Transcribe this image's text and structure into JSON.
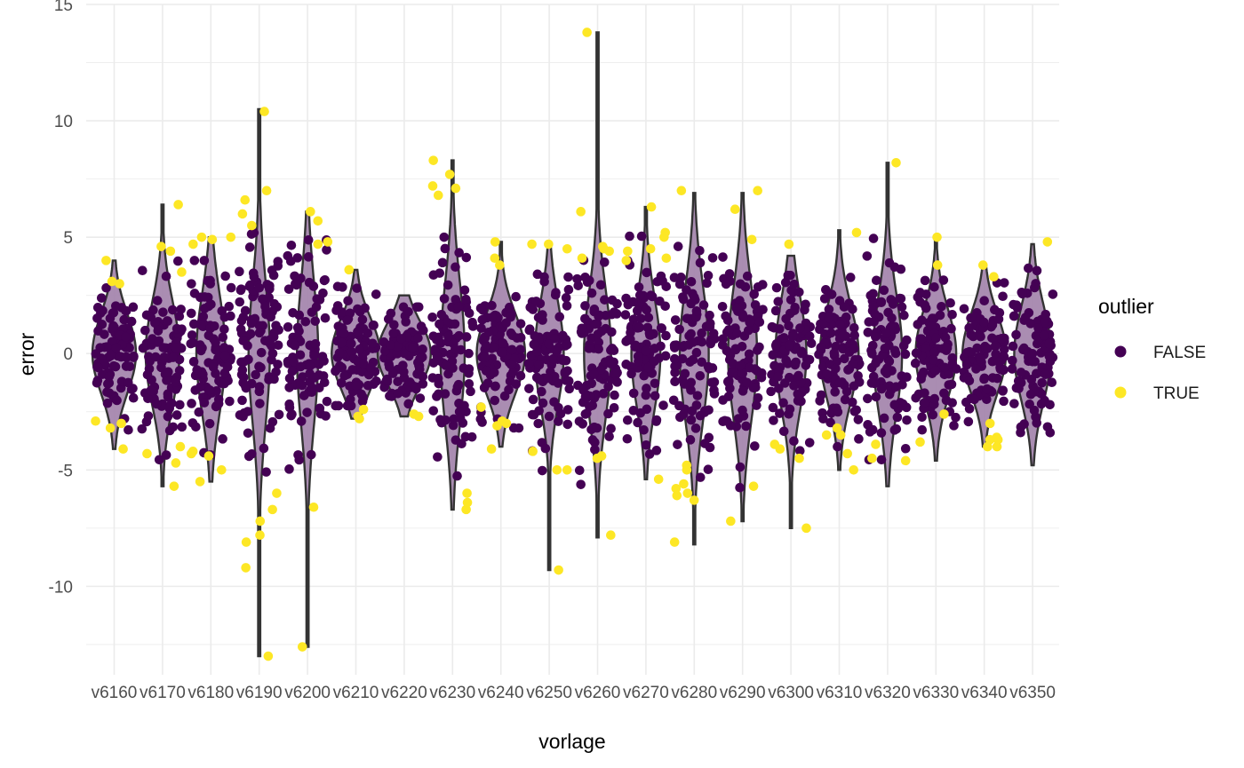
{
  "chart_data": {
    "type": "violin-with-jitter",
    "xlabel": "vorlage",
    "ylabel": "error",
    "categories": [
      "v6160",
      "v6170",
      "v6180",
      "v6190",
      "v6200",
      "v6210",
      "v6220",
      "v6230",
      "v6240",
      "v6250",
      "v6260",
      "v6270",
      "v6280",
      "v6290",
      "v6300",
      "v6310",
      "v6320",
      "v6330",
      "v6340",
      "v6350"
    ],
    "ylim": [
      -13.8,
      15
    ],
    "yticks": [
      15,
      10,
      5,
      0,
      -5,
      -10
    ],
    "grid": true,
    "legend": {
      "title": "outlier",
      "position": "right",
      "entries": [
        {
          "label": "FALSE",
          "color": "#440154"
        },
        {
          "label": "TRUE",
          "color": "#FDE725"
        }
      ]
    },
    "violin_fill": "#A383AB",
    "violin_stroke": "#333333",
    "violins": [
      {
        "category": "v6160",
        "min": -4.1,
        "max": 4.0,
        "q1": -1.0,
        "median": 0.0,
        "q3": 1.0,
        "max_width": 0.45
      },
      {
        "category": "v6170",
        "min": -5.7,
        "max": 6.4,
        "q1": -1.3,
        "median": 0.0,
        "q3": 1.3,
        "max_width": 0.35
      },
      {
        "category": "v6180",
        "min": -5.5,
        "max": 5.0,
        "q1": -1.5,
        "median": 0.0,
        "q3": 1.5,
        "max_width": 0.3
      },
      {
        "category": "v6190",
        "min": -13.0,
        "max": 10.5,
        "q1": -1.8,
        "median": 0.0,
        "q3": 1.8,
        "max_width": 0.22
      },
      {
        "category": "v6200",
        "min": -12.6,
        "max": 6.1,
        "q1": -1.8,
        "median": 0.0,
        "q3": 1.8,
        "max_width": 0.22
      },
      {
        "category": "v6210",
        "min": -2.8,
        "max": 3.6,
        "q1": -0.9,
        "median": 0.0,
        "q3": 0.9,
        "max_width": 0.5
      },
      {
        "category": "v6220",
        "min": -2.7,
        "max": 2.5,
        "q1": -0.8,
        "median": 0.0,
        "q3": 0.8,
        "max_width": 0.55
      },
      {
        "category": "v6230",
        "min": -6.7,
        "max": 8.3,
        "q1": -1.8,
        "median": 0.0,
        "q3": 1.8,
        "max_width": 0.25
      },
      {
        "category": "v6240",
        "min": -4.0,
        "max": 4.8,
        "q1": -1.0,
        "median": 0.0,
        "q3": 1.0,
        "max_width": 0.5
      },
      {
        "category": "v6250",
        "min": -9.3,
        "max": 4.7,
        "q1": -1.3,
        "median": 0.0,
        "q3": 1.3,
        "max_width": 0.3
      },
      {
        "category": "v6260",
        "min": -7.9,
        "max": 13.8,
        "q1": -1.6,
        "median": 0.0,
        "q3": 1.6,
        "max_width": 0.28
      },
      {
        "category": "v6270",
        "min": -5.4,
        "max": 6.3,
        "q1": -1.4,
        "median": 0.0,
        "q3": 1.4,
        "max_width": 0.3
      },
      {
        "category": "v6280",
        "min": -8.2,
        "max": 6.9,
        "q1": -1.7,
        "median": 0.0,
        "q3": 1.7,
        "max_width": 0.3
      },
      {
        "category": "v6290",
        "min": -7.2,
        "max": 6.9,
        "q1": -1.7,
        "median": 0.0,
        "q3": 1.7,
        "max_width": 0.3
      },
      {
        "category": "v6300",
        "min": -7.5,
        "max": 4.2,
        "q1": -1.4,
        "median": 0.0,
        "q3": 1.4,
        "max_width": 0.32
      },
      {
        "category": "v6310",
        "min": -5.0,
        "max": 5.3,
        "q1": -1.2,
        "median": 0.0,
        "q3": 1.2,
        "max_width": 0.4
      },
      {
        "category": "v6320",
        "min": -5.7,
        "max": 8.2,
        "q1": -1.5,
        "median": 0.0,
        "q3": 1.5,
        "max_width": 0.3
      },
      {
        "category": "v6330",
        "min": -4.6,
        "max": 5.0,
        "q1": -1.1,
        "median": 0.0,
        "q3": 1.1,
        "max_width": 0.42
      },
      {
        "category": "v6340",
        "min": -4.0,
        "max": 3.8,
        "q1": -1.0,
        "median": 0.0,
        "q3": 1.0,
        "max_width": 0.45
      },
      {
        "category": "v6350",
        "min": -4.8,
        "max": 4.7,
        "q1": -1.2,
        "median": 0.0,
        "q3": 1.2,
        "max_width": 0.38
      }
    ],
    "outliers": [
      {
        "category": "v6160",
        "values": [
          -4.1,
          -3.2,
          -3.0,
          -2.9,
          3.0,
          3.1,
          4.0
        ]
      },
      {
        "category": "v6170",
        "values": [
          -5.7,
          -4.7,
          -4.3,
          -4.0,
          3.5,
          4.4,
          4.6,
          6.4
        ]
      },
      {
        "category": "v6180",
        "values": [
          -5.5,
          -5.0,
          -4.4,
          -4.2,
          -4.3,
          4.7,
          4.9,
          5.0,
          5.0
        ]
      },
      {
        "category": "v6190",
        "values": [
          -13.0,
          -9.2,
          -8.1,
          -7.8,
          -7.2,
          -6.7,
          -6.0,
          5.5,
          6.0,
          6.6,
          7.0,
          10.4
        ]
      },
      {
        "category": "v6200",
        "values": [
          -12.6,
          -6.6,
          4.7,
          4.8,
          5.7,
          6.1
        ]
      },
      {
        "category": "v6210",
        "values": [
          -2.8,
          -2.7,
          -2.4,
          3.6
        ]
      },
      {
        "category": "v6220",
        "values": [
          -2.7,
          -2.6
        ]
      },
      {
        "category": "v6230",
        "values": [
          -6.7,
          -6.4,
          -6.0,
          6.8,
          7.1,
          7.2,
          7.7,
          8.3
        ]
      },
      {
        "category": "v6240",
        "values": [
          -4.1,
          -3.0,
          -3.1,
          -2.9,
          -2.3,
          3.8,
          4.1,
          4.8
        ]
      },
      {
        "category": "v6250",
        "values": [
          -9.3,
          -5.0,
          -5.0,
          -4.2,
          4.5,
          4.7,
          4.7
        ]
      },
      {
        "category": "v6260",
        "values": [
          -7.8,
          -4.5,
          -4.4,
          4.1,
          4.4,
          4.5,
          4.6,
          6.1,
          13.8
        ]
      },
      {
        "category": "v6270",
        "values": [
          -5.4,
          4.0,
          4.1,
          4.4,
          4.5,
          5.0,
          5.2,
          6.3
        ]
      },
      {
        "category": "v6280",
        "values": [
          -8.1,
          -6.3,
          -6.1,
          -6.0,
          -5.8,
          -5.6,
          -5.0,
          -4.8,
          7.0
        ]
      },
      {
        "category": "v6290",
        "values": [
          -7.2,
          -5.7,
          4.9,
          6.2,
          7.0
        ]
      },
      {
        "category": "v6300",
        "values": [
          -7.5,
          -4.5,
          -4.1,
          -3.9,
          4.7
        ]
      },
      {
        "category": "v6310",
        "values": [
          -5.0,
          -4.3,
          -3.5,
          -3.5,
          -3.2,
          5.2
        ]
      },
      {
        "category": "v6320",
        "values": [
          -4.6,
          -4.5,
          -3.9,
          8.2
        ]
      },
      {
        "category": "v6330",
        "values": [
          -3.8,
          -2.6,
          3.8,
          5.0
        ]
      },
      {
        "category": "v6340",
        "values": [
          -4.0,
          -4.0,
          -3.7,
          -3.7,
          -3.6,
          -3.0,
          3.3,
          3.8
        ]
      },
      {
        "category": "v6350",
        "values": [
          4.8
        ]
      }
    ]
  }
}
